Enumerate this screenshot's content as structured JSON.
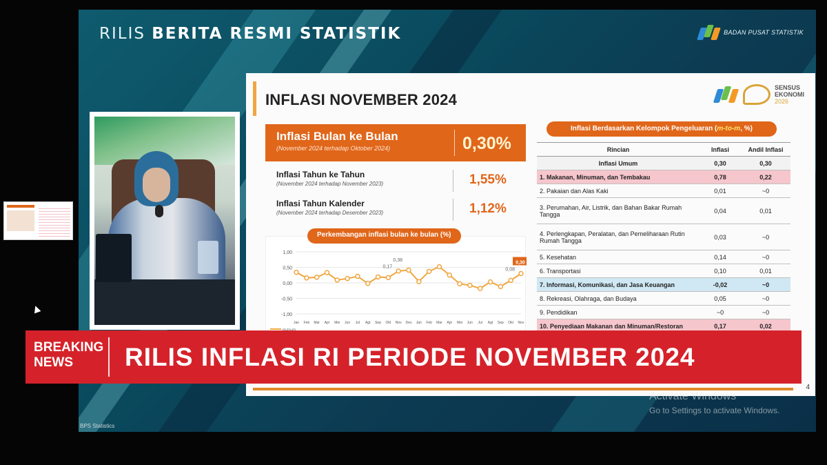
{
  "header": {
    "title_light": "RILIS",
    "title_bold": "BERITA RESMI STATISTIK",
    "agency": "BADAN PUSAT STATISTIK"
  },
  "slide": {
    "title": "INFLASI NOVEMBER 2024",
    "sensus_label_1": "SENSUS",
    "sensus_label_2": "EKONOMI",
    "sensus_year": "2026",
    "mtm": {
      "label": "Inflasi Bulan ke Bulan",
      "sub": "(November 2024 terhadap Oktober 2024)",
      "value": "0,30%"
    },
    "yoy": {
      "label": "Inflasi Tahun ke Tahun",
      "sub": "(November 2024 terhadap November 2023)",
      "value": "1,55%"
    },
    "ytd": {
      "label": "Inflasi Tahun Kalender",
      "sub": "(November 2024 terhadap Desember 2023)",
      "value": "1,12%"
    },
    "chart_title": "Perkembangan inflasi bulan ke bulan (%)",
    "table_title_prefix": "Inflasi Berdasarkan Kelompok Pengeluaran (",
    "table_title_em": "m-to-m",
    "table_title_suffix": ", %)",
    "table": {
      "headers": [
        "Rincian",
        "Inflasi",
        "Andil Inflasi"
      ],
      "general": {
        "label": "Inflasi Umum",
        "inflasi": "0,30",
        "andil": "0,30"
      },
      "rows": [
        {
          "label": "1.  Makanan, Minuman, dan Tembakau",
          "inflasi": "0,78",
          "andil": "0,22"
        },
        {
          "label": "2.  Pakaian dan Alas Kaki",
          "inflasi": "0,01",
          "andil": "~0"
        },
        {
          "label": "3.  Perumahan, Air, Listrik, dan Bahan Bakar Rumah Tangga",
          "inflasi": "0,04",
          "andil": "0,01"
        },
        {
          "label": "4.  Perlengkapan, Peralatan, dan Pemeliharaan Rutin Rumah Tangga",
          "inflasi": "0,03",
          "andil": "~0"
        },
        {
          "label": "5.  Kesehatan",
          "inflasi": "0,14",
          "andil": "~0"
        },
        {
          "label": "6.  Transportasi",
          "inflasi": "0,10",
          "andil": "0,01"
        },
        {
          "label": "7.  Informasi, Komunikasi, dan Jasa Keuangan",
          "inflasi": "-0,02",
          "andil": "~0"
        },
        {
          "label": "8.  Rekreasi, Olahraga, dan Budaya",
          "inflasi": "0,05",
          "andil": "~0"
        },
        {
          "label": "9.  Pendidikan",
          "inflasi": "~0",
          "andil": "~0"
        },
        {
          "label": "10. Penyediaan Makanan dan Minuman/Restoran",
          "inflasi": "0,17",
          "andil": "0,02"
        }
      ]
    },
    "page_number": "4"
  },
  "chart_data": {
    "type": "line",
    "title": "Perkembangan inflasi bulan ke bulan (%)",
    "legend": "m-to-m",
    "ylim": [
      -1.0,
      1.0
    ],
    "yticks": [
      "1,00",
      "0,50",
      "0,00",
      "-0,50",
      "-1,00"
    ],
    "categories": [
      "Jan",
      "Feb",
      "Mar",
      "Apr",
      "Mei",
      "Jun",
      "Jul",
      "Agt",
      "Sep",
      "Okt",
      "Nov",
      "Des",
      "Jan",
      "Feb",
      "Mar",
      "Apr",
      "Mei",
      "Jun",
      "Jul",
      "Agt",
      "Sep",
      "Okt",
      "Nov"
    ],
    "series": [
      {
        "name": "m-to-m",
        "values": [
          0.34,
          0.16,
          0.18,
          0.33,
          0.09,
          0.14,
          0.21,
          -0.02,
          0.19,
          0.17,
          0.38,
          0.41,
          0.04,
          0.37,
          0.52,
          0.25,
          -0.03,
          -0.08,
          -0.18,
          0.03,
          -0.12,
          0.08,
          0.3
        ]
      }
    ],
    "labels": [
      {
        "index": 9,
        "text": "0,17"
      },
      {
        "index": 10,
        "text": "0,38"
      },
      {
        "index": 21,
        "text": "0,08"
      },
      {
        "index": 22,
        "text": "0,30"
      }
    ],
    "colors": {
      "line": "#f0a640",
      "highlight": "#e0661a"
    }
  },
  "breaking": {
    "tag_line_1": "BREAKING",
    "tag_line_2": "NEWS",
    "headline": "RILIS INFLASI RI PERIODE NOVEMBER 2024"
  },
  "activation": {
    "title": "Activate Windows",
    "message": "Go to Settings to activate Windows."
  },
  "participant_caption": "BPS Statistics"
}
